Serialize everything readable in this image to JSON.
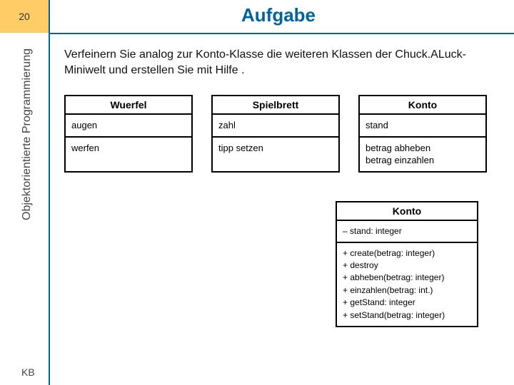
{
  "slide": {
    "number": "20",
    "title": "Aufgabe",
    "sidebar_label": "Objektorientierte Programmierung",
    "footer": "KB"
  },
  "intro_text": "Verfeinern Sie analog zur Konto-Klasse die weiteren Klassen der Chuck.ALuck-Miniwelt und erstellen Sie mit Hilfe .",
  "classes": [
    {
      "name": "Wuerfel",
      "attrs": "augen",
      "ops": "werfen"
    },
    {
      "name": "Spielbrett",
      "attrs": "zahl",
      "ops": "tipp setzen"
    },
    {
      "name": "Konto",
      "attrs": "stand",
      "ops": "betrag abheben\nbetrag einzahlen"
    }
  ],
  "konto_detail": {
    "name": "Konto",
    "attrs": "– stand: integer",
    "ops": "+ create(betrag: integer)\n+ destroy\n+ abheben(betrag: integer)\n+ einzahlen(betrag: int.)\n+ getStand: integer\n+ setStand(betrag: integer)"
  },
  "colors": {
    "accent_box": "#ffcc66",
    "rule": "#006699",
    "title": "#006699"
  }
}
